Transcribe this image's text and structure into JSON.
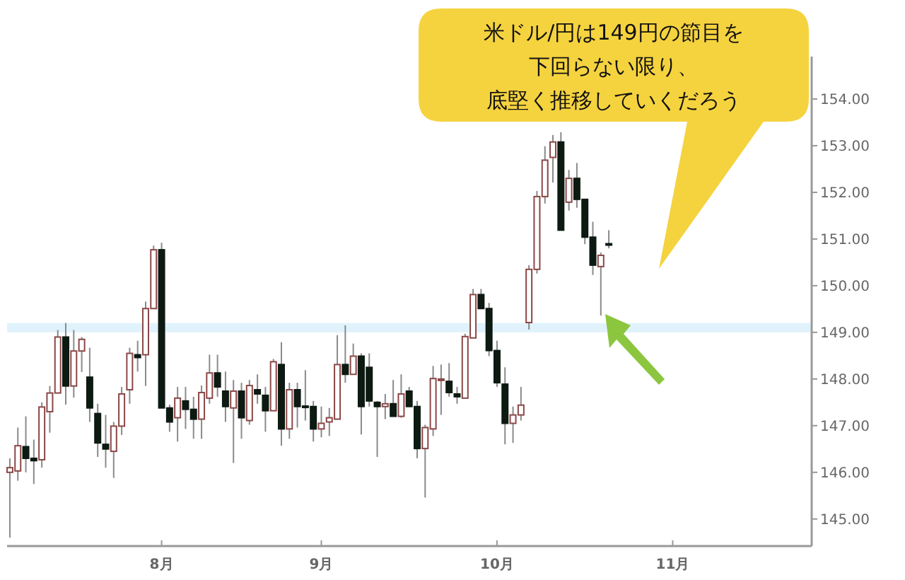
{
  "chart_data": {
    "type": "candlestick",
    "categories": [
      null,
      null,
      null,
      null,
      null,
      null,
      null,
      null,
      null,
      null,
      null,
      null,
      null,
      null,
      null,
      null,
      null,
      null,
      null,
      "8月",
      null,
      null,
      null,
      null,
      null,
      null,
      null,
      null,
      null,
      null,
      null,
      null,
      null,
      null,
      null,
      null,
      null,
      null,
      null,
      "9月",
      null,
      null,
      null,
      null,
      null,
      null,
      null,
      null,
      null,
      null,
      null,
      null,
      null,
      null,
      null,
      null,
      null,
      null,
      null,
      null,
      null,
      "10月",
      null,
      null,
      null,
      null,
      null,
      null,
      null,
      null,
      null,
      null,
      null,
      null,
      null,
      null,
      null,
      null,
      null,
      null,
      null,
      null,
      null,
      "11月",
      null,
      null,
      null,
      null,
      null,
      null,
      null,
      null,
      null,
      null,
      null,
      null,
      null,
      null,
      null,
      null,
      null
    ],
    "ohlc": [
      [
        146.0,
        146.3,
        144.6,
        146.1
      ],
      [
        146.03,
        146.96,
        145.82,
        146.57
      ],
      [
        146.55,
        147.2,
        146.0,
        146.3
      ],
      [
        146.3,
        146.7,
        145.75,
        146.25
      ],
      [
        146.27,
        147.5,
        146.1,
        147.4
      ],
      [
        147.3,
        147.85,
        146.85,
        147.7
      ],
      [
        147.7,
        149.05,
        147.7,
        148.9
      ],
      [
        148.9,
        149.2,
        147.45,
        147.85
      ],
      [
        147.85,
        149.05,
        147.6,
        148.6
      ],
      [
        148.6,
        148.9,
        148.15,
        148.85
      ],
      [
        148.04,
        148.67,
        147.08,
        147.38
      ],
      [
        147.26,
        147.47,
        146.33,
        146.63
      ],
      [
        146.6,
        147.23,
        146.1,
        146.5
      ],
      [
        146.45,
        147.08,
        145.88,
        146.99
      ],
      [
        146.99,
        147.83,
        146.8,
        147.68
      ],
      [
        147.77,
        148.67,
        147.47,
        148.55
      ],
      [
        148.52,
        148.82,
        148.16,
        148.46
      ],
      [
        148.52,
        149.66,
        147.85,
        149.51
      ],
      [
        149.51,
        150.86,
        149.51,
        150.77
      ],
      [
        150.77,
        150.92,
        147.38,
        147.38
      ],
      [
        147.38,
        147.45,
        146.87,
        147.08
      ],
      [
        147.17,
        147.83,
        146.66,
        147.59
      ],
      [
        147.53,
        147.83,
        146.93,
        147.35
      ],
      [
        147.35,
        147.62,
        146.72,
        147.14
      ],
      [
        147.14,
        147.86,
        146.72,
        147.71
      ],
      [
        147.59,
        148.52,
        147.47,
        148.13
      ],
      [
        148.13,
        148.52,
        147.62,
        147.83
      ],
      [
        147.74,
        148.16,
        147.08,
        147.41
      ],
      [
        147.38,
        147.98,
        146.2,
        147.74
      ],
      [
        147.74,
        147.92,
        146.72,
        147.17
      ],
      [
        147.11,
        147.98,
        147.02,
        147.86
      ],
      [
        147.77,
        148.1,
        147.47,
        147.68
      ],
      [
        147.65,
        147.83,
        146.87,
        147.32
      ],
      [
        147.32,
        148.43,
        147.32,
        148.37
      ],
      [
        148.31,
        148.79,
        146.57,
        146.93
      ],
      [
        146.93,
        147.92,
        146.72,
        147.77
      ],
      [
        147.77,
        147.92,
        146.96,
        147.41
      ],
      [
        147.42,
        148.19,
        147.11,
        147.4
      ],
      [
        147.41,
        147.53,
        146.66,
        146.93
      ],
      [
        146.93,
        147.41,
        146.75,
        147.05
      ],
      [
        147.08,
        147.38,
        146.78,
        147.17
      ],
      [
        147.14,
        148.94,
        147.14,
        148.31
      ],
      [
        148.31,
        149.15,
        147.92,
        148.1
      ],
      [
        148.1,
        148.76,
        148.1,
        148.49
      ],
      [
        148.49,
        148.55,
        146.81,
        147.41
      ],
      [
        148.25,
        148.55,
        147.41,
        147.53
      ],
      [
        147.5,
        147.53,
        146.33,
        147.41
      ],
      [
        147.41,
        147.68,
        147.14,
        147.47
      ],
      [
        147.47,
        147.98,
        147.2,
        147.2
      ],
      [
        147.2,
        148.1,
        147.17,
        147.68
      ],
      [
        147.74,
        147.83,
        147.41,
        147.41
      ],
      [
        147.41,
        147.53,
        146.3,
        146.51
      ],
      [
        146.51,
        147.02,
        145.46,
        146.96
      ],
      [
        146.93,
        148.28,
        146.78,
        148.01
      ],
      [
        147.98,
        148.31,
        147.23,
        148.0
      ],
      [
        147.95,
        148.34,
        147.62,
        147.71
      ],
      [
        147.68,
        147.83,
        147.47,
        147.62
      ],
      [
        147.59,
        148.97,
        147.59,
        148.91
      ],
      [
        148.88,
        149.93,
        148.88,
        149.81
      ],
      [
        149.81,
        149.93,
        149.51,
        149.51
      ],
      [
        149.51,
        149.63,
        148.49,
        148.61
      ],
      [
        148.61,
        148.82,
        147.83,
        147.92
      ],
      [
        147.89,
        148.25,
        146.6,
        147.05
      ],
      [
        147.05,
        147.41,
        146.63,
        147.23
      ],
      [
        147.23,
        147.83,
        147.11,
        147.44
      ],
      [
        149.21,
        150.44,
        149.06,
        150.35
      ],
      [
        150.35,
        152.03,
        150.26,
        151.91
      ],
      [
        151.91,
        152.99,
        151.76,
        152.69
      ],
      [
        152.75,
        153.23,
        152.21,
        153.08
      ],
      [
        153.08,
        153.29,
        151.19,
        151.19
      ],
      [
        151.79,
        152.48,
        151.61,
        152.3
      ],
      [
        152.3,
        152.63,
        151.67,
        151.85
      ],
      [
        151.85,
        151.85,
        150.89,
        151.04
      ],
      [
        151.04,
        151.37,
        150.23,
        150.44
      ],
      [
        150.41,
        150.71,
        149.36,
        150.65
      ],
      [
        150.9,
        151.19,
        150.8,
        150.87
      ],
      null,
      null,
      null,
      null,
      null,
      null,
      null,
      null,
      null,
      null,
      null,
      null,
      null,
      null,
      null,
      null,
      null,
      null,
      null,
      null,
      null,
      null,
      null,
      null,
      null
    ],
    "ylim": [
      144.42,
      154.91
    ],
    "yticks": [
      {
        "value": 145,
        "label": "145.00"
      },
      {
        "value": 146,
        "label": "146.00"
      },
      {
        "value": 147,
        "label": "147.00"
      },
      {
        "value": 148,
        "label": "148.00"
      },
      {
        "value": 149,
        "label": "149.00"
      },
      {
        "value": 150,
        "label": "150.00"
      },
      {
        "value": 151,
        "label": "151.00"
      },
      {
        "value": 152,
        "label": "152.00"
      },
      {
        "value": 153,
        "label": "153.00"
      },
      {
        "value": 154,
        "label": "154.00"
      }
    ],
    "bands": [
      {
        "axis": "y",
        "from": 149.0,
        "to": 149.2,
        "color": "#e0f3fc"
      }
    ],
    "annotations": [
      "米ドル/円は149円の節目を",
      "下回らない限り、",
      "底堅く推移していくだろう"
    ]
  }
}
